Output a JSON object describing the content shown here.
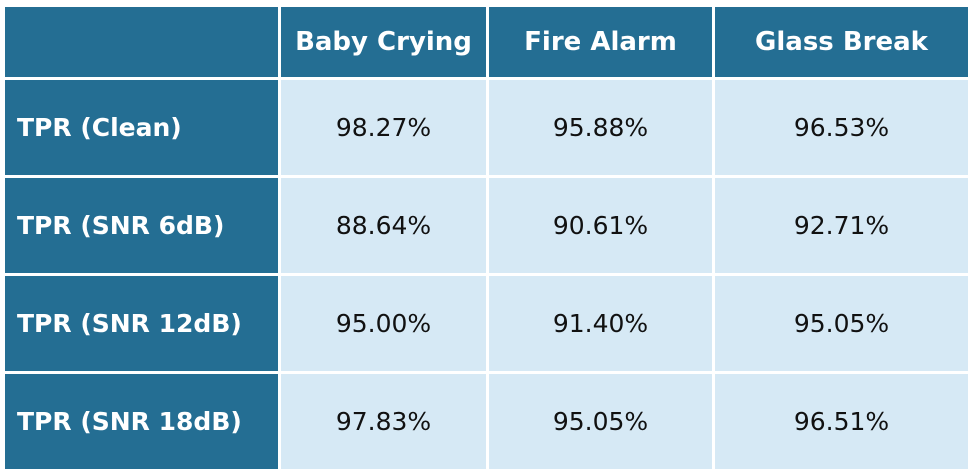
{
  "table": {
    "corner": "",
    "columns": [
      "Baby Crying",
      "Fire Alarm",
      "Glass Break"
    ],
    "rows": [
      {
        "label": "TPR (Clean)",
        "values": [
          "98.27%",
          "95.88%",
          "96.53%"
        ]
      },
      {
        "label": "TPR (SNR 6dB)",
        "values": [
          "88.64%",
          "90.61%",
          "92.71%"
        ]
      },
      {
        "label": "TPR (SNR 12dB)",
        "values": [
          "95.00%",
          "91.40%",
          "95.05%"
        ]
      },
      {
        "label": "TPR (SNR 18dB)",
        "values": [
          "97.83%",
          "95.05%",
          "96.51%"
        ]
      }
    ]
  },
  "colors": {
    "header_bg": "#246e93",
    "cell_bg": "#d6e9f5",
    "header_text": "#ffffff",
    "cell_text": "#111111",
    "grid_lines": "#ffffff"
  }
}
